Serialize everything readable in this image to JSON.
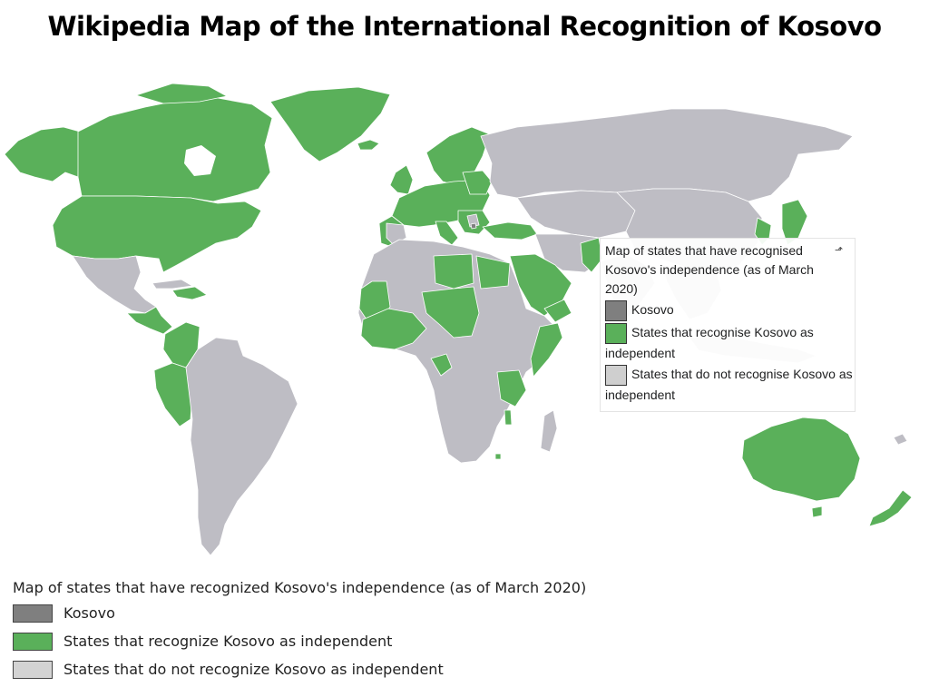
{
  "title": "Wikipedia Map of the International Recognition of Kosovo",
  "colors": {
    "kosovo": "#7f7f7f",
    "recognise": "#5ab05a",
    "not_recognise": "#bebdc4",
    "inset_not_recognise_swatch": "#cfcfcf",
    "bottom_not_recognise_swatch": "#d3d3d3"
  },
  "inset_legend": {
    "caption": "Map of states that have recognised Kosovo's independence (as of March 2020)",
    "external_icon": "external-link-icon",
    "items": [
      {
        "label": "Kosovo",
        "category": "kosovo"
      },
      {
        "label": "States that recognise Kosovo as independent",
        "category": "recognise"
      },
      {
        "label": "States that do not recognise Kosovo as independent",
        "category": "not_recognise"
      }
    ]
  },
  "bottom_legend": {
    "caption": "Map of states that have recognized Kosovo's independence (as of March 2020)",
    "items": [
      {
        "label": "Kosovo",
        "category": "kosovo"
      },
      {
        "label": "States that recognize Kosovo as independent",
        "category": "recognise"
      },
      {
        "label": "States that do not recognize Kosovo as independent",
        "category": "not_recognise"
      }
    ]
  }
}
